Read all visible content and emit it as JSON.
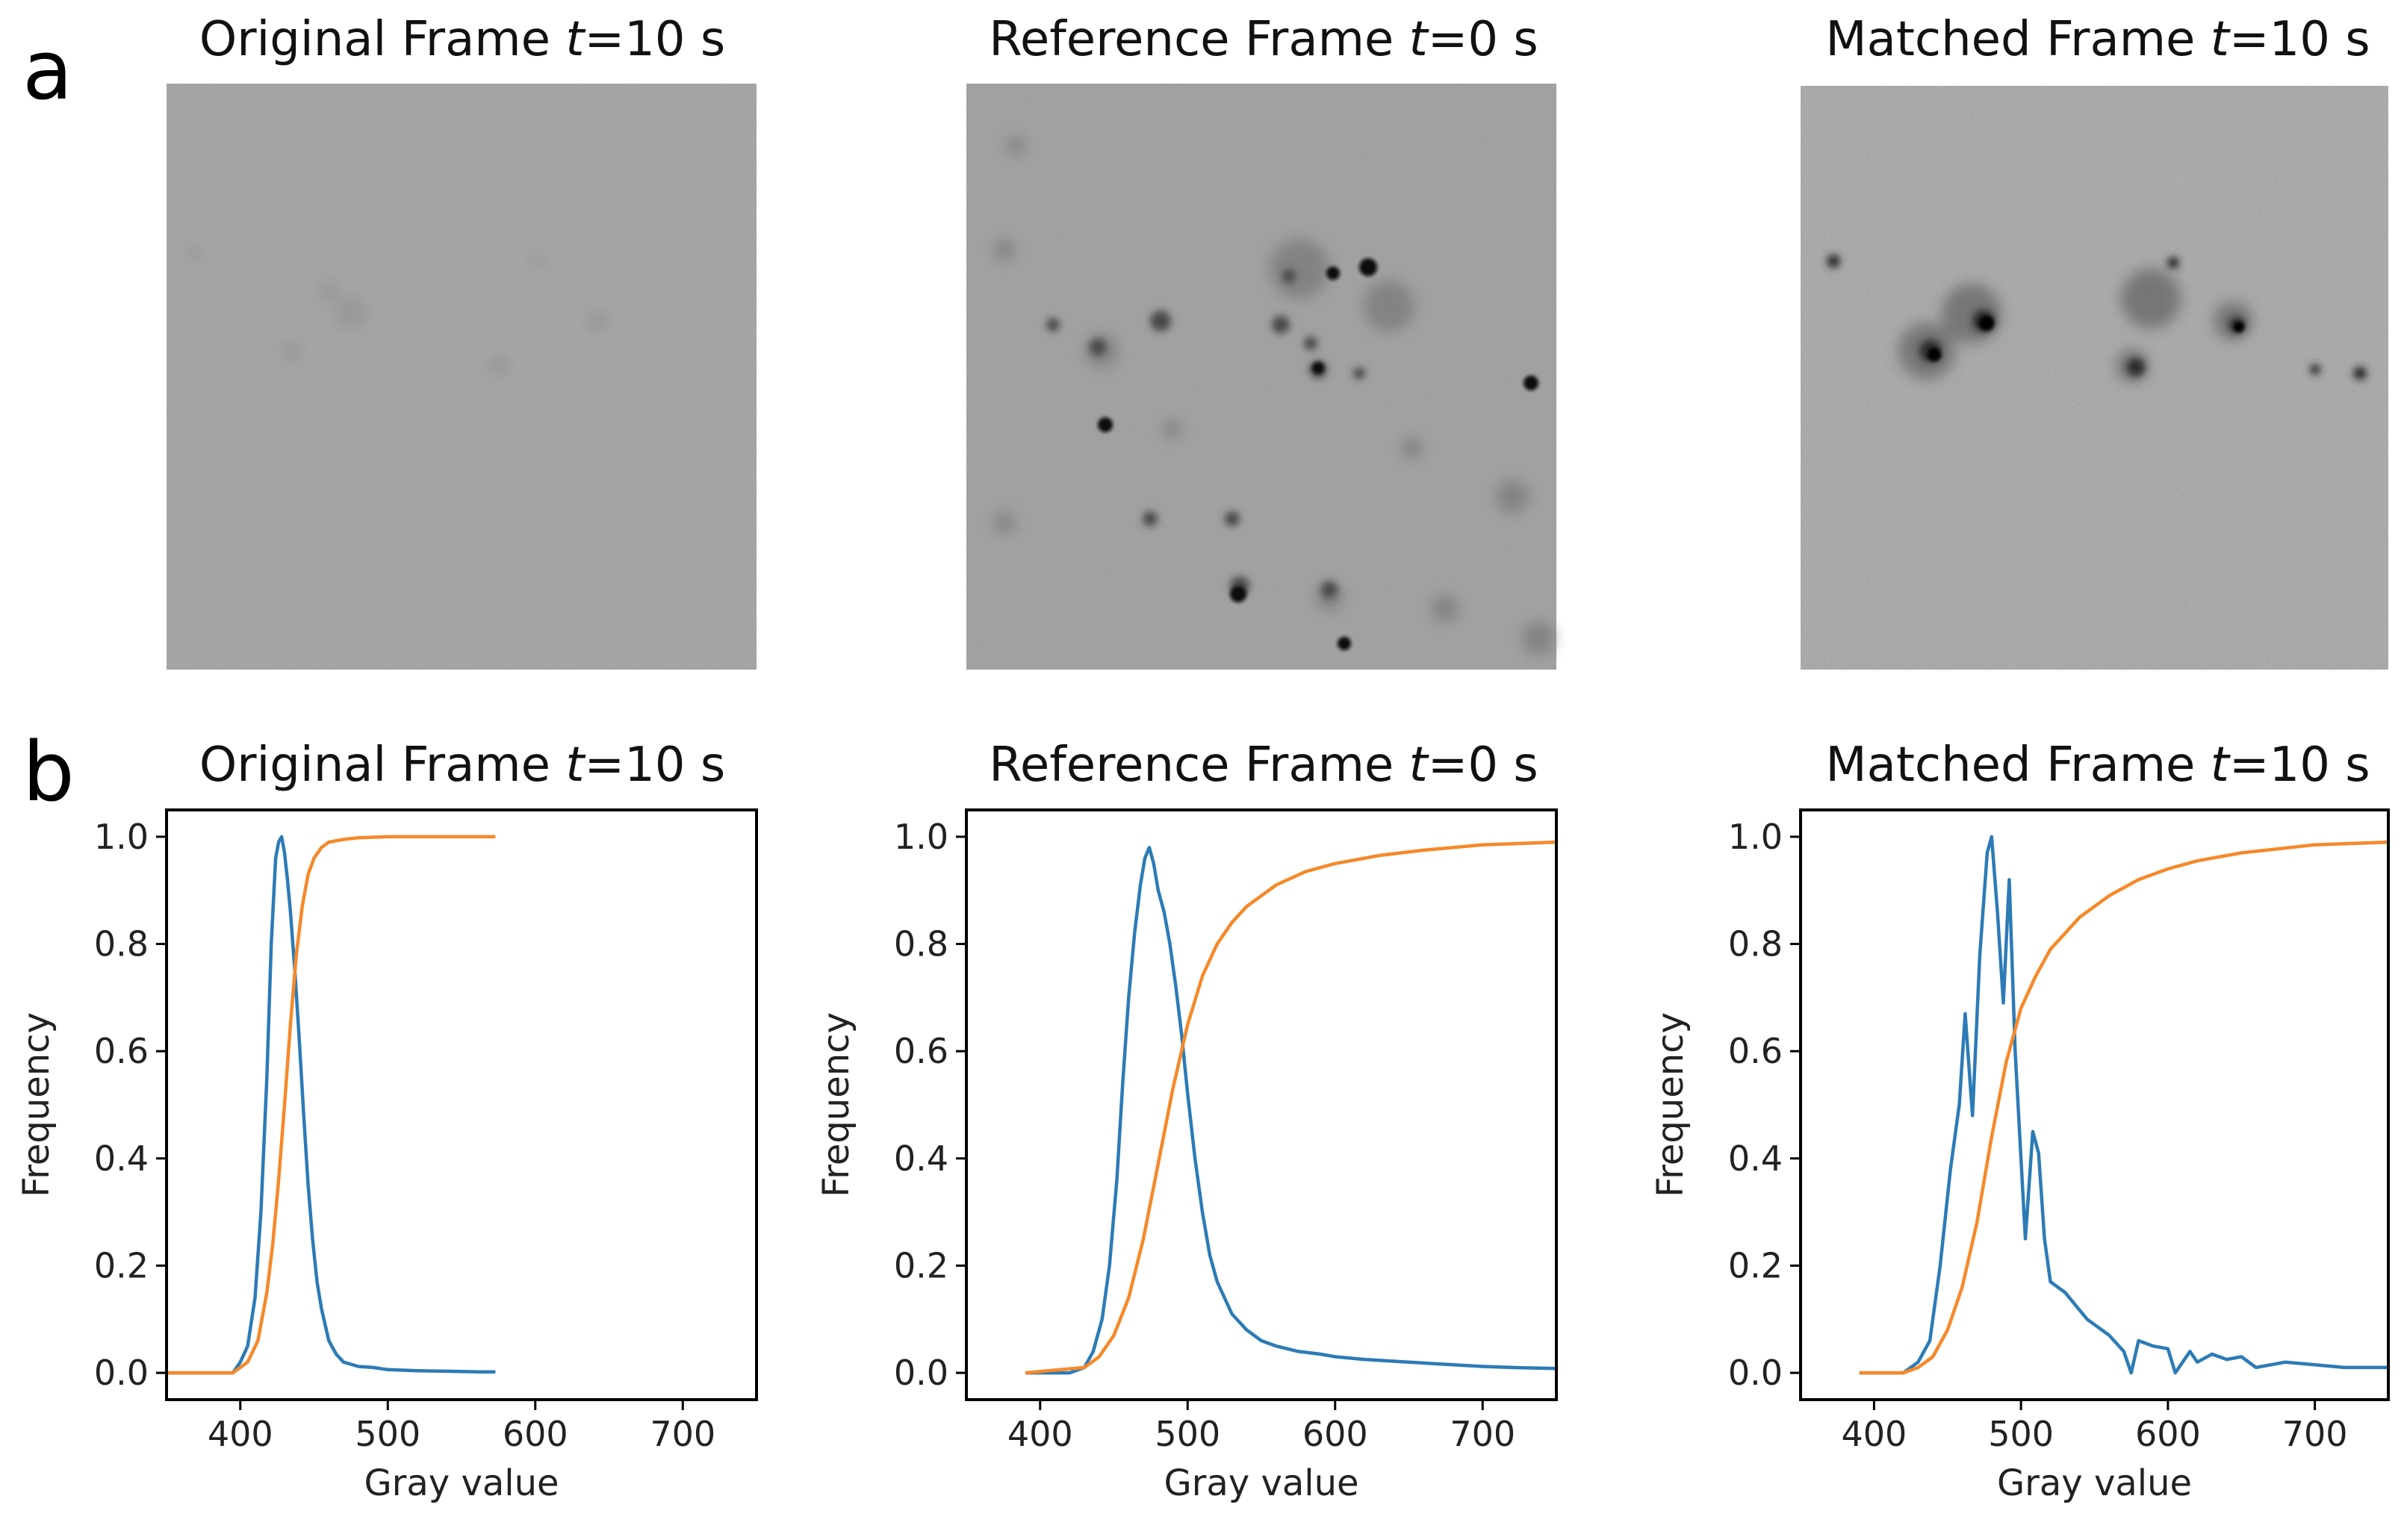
{
  "panel_labels": {
    "a": "a",
    "b": "b"
  },
  "images": [
    {
      "title_prefix": "Original Frame ",
      "title_var": "t",
      "title_suffix": "=10 s",
      "tone": "#a9a9a9",
      "contrast": "low"
    },
    {
      "title_prefix": "Reference Frame ",
      "title_var": "t",
      "title_suffix": "=0 s",
      "tone": "#a6a6a6",
      "contrast": "medium"
    },
    {
      "title_prefix": "Matched Frame ",
      "title_var": "t",
      "title_suffix": "=10 s",
      "tone": "#b4b4b4",
      "contrast": "high"
    }
  ],
  "colors": {
    "histogram": "#2c7bb6",
    "cdf": "#f5892a"
  },
  "chart_data": [
    {
      "type": "line",
      "title_prefix": "Original Frame ",
      "title_var": "t",
      "title_suffix": "=10 s",
      "xlabel": "Gray value",
      "ylabel": "Frequency",
      "xlim": [
        350,
        750
      ],
      "ylim": [
        -0.05,
        1.05
      ],
      "xticks": [
        400,
        500,
        600,
        700
      ],
      "yticks": [
        0.0,
        0.2,
        0.4,
        0.6,
        0.8,
        1.0
      ],
      "series": [
        {
          "role": "histogram",
          "x": [
            350,
            395,
            400,
            405,
            410,
            414,
            418,
            421,
            424,
            426,
            428,
            430,
            432,
            434,
            437,
            440,
            443,
            446,
            449,
            452,
            455,
            460,
            465,
            470,
            480,
            490,
            500,
            520,
            540,
            560,
            573
          ],
          "y": [
            0.0,
            0.0,
            0.02,
            0.05,
            0.14,
            0.3,
            0.55,
            0.8,
            0.96,
            0.99,
            1.0,
            0.97,
            0.92,
            0.86,
            0.75,
            0.62,
            0.48,
            0.35,
            0.25,
            0.17,
            0.12,
            0.06,
            0.035,
            0.02,
            0.012,
            0.01,
            0.006,
            0.004,
            0.003,
            0.002,
            0.002
          ]
        },
        {
          "role": "cdf",
          "x": [
            350,
            395,
            405,
            412,
            418,
            422,
            426,
            430,
            434,
            438,
            442,
            446,
            450,
            455,
            460,
            470,
            480,
            500,
            530,
            573
          ],
          "y": [
            0.0,
            0.0,
            0.02,
            0.06,
            0.15,
            0.24,
            0.36,
            0.5,
            0.65,
            0.78,
            0.87,
            0.93,
            0.96,
            0.98,
            0.99,
            0.995,
            0.998,
            1.0,
            1.0,
            1.0
          ]
        }
      ]
    },
    {
      "type": "line",
      "title_prefix": "Reference Frame ",
      "title_var": "t",
      "title_suffix": "=0 s",
      "xlabel": "Gray value",
      "ylabel": "Frequency",
      "xlim": [
        350,
        750
      ],
      "ylim": [
        -0.05,
        1.05
      ],
      "xticks": [
        400,
        500,
        600,
        700
      ],
      "yticks": [
        0.0,
        0.2,
        0.4,
        0.6,
        0.8,
        1.0
      ],
      "series": [
        {
          "role": "histogram",
          "x": [
            390,
            420,
            430,
            436,
            442,
            447,
            452,
            456,
            460,
            464,
            468,
            471,
            474,
            477,
            480,
            484,
            488,
            492,
            496,
            500,
            505,
            510,
            515,
            520,
            530,
            540,
            550,
            560,
            575,
            590,
            600,
            620,
            650,
            680,
            700,
            720,
            750
          ],
          "y": [
            0.0,
            0.0,
            0.01,
            0.04,
            0.1,
            0.2,
            0.36,
            0.54,
            0.7,
            0.82,
            0.91,
            0.96,
            0.98,
            0.95,
            0.9,
            0.86,
            0.8,
            0.72,
            0.63,
            0.52,
            0.4,
            0.3,
            0.22,
            0.17,
            0.11,
            0.08,
            0.06,
            0.05,
            0.04,
            0.035,
            0.03,
            0.025,
            0.02,
            0.015,
            0.012,
            0.01,
            0.008
          ]
        },
        {
          "role": "cdf",
          "x": [
            390,
            430,
            440,
            450,
            460,
            470,
            480,
            490,
            500,
            510,
            520,
            530,
            540,
            550,
            560,
            580,
            600,
            630,
            660,
            700,
            750
          ],
          "y": [
            0.0,
            0.01,
            0.03,
            0.07,
            0.14,
            0.25,
            0.39,
            0.53,
            0.65,
            0.74,
            0.8,
            0.84,
            0.87,
            0.89,
            0.91,
            0.935,
            0.95,
            0.965,
            0.975,
            0.985,
            0.99
          ]
        }
      ]
    },
    {
      "type": "line",
      "title_prefix": "Matched Frame ",
      "title_var": "t",
      "title_suffix": "=10 s",
      "xlabel": "Gray value",
      "ylabel": "Frequency",
      "xlim": [
        350,
        750
      ],
      "ylim": [
        -0.05,
        1.05
      ],
      "xticks": [
        400,
        500,
        600,
        700
      ],
      "yticks": [
        0.0,
        0.2,
        0.4,
        0.6,
        0.8,
        1.0
      ],
      "series": [
        {
          "role": "histogram",
          "x": [
            390,
            420,
            430,
            438,
            445,
            452,
            458,
            462,
            467,
            472,
            477,
            480,
            484,
            488,
            492,
            496,
            500,
            503,
            508,
            512,
            516,
            520,
            530,
            545,
            560,
            570,
            575,
            580,
            590,
            600,
            605,
            615,
            620,
            630,
            640,
            650,
            660,
            680,
            700,
            720,
            750
          ],
          "y": [
            0.0,
            0.0,
            0.02,
            0.06,
            0.2,
            0.38,
            0.5,
            0.67,
            0.48,
            0.78,
            0.97,
            1.0,
            0.86,
            0.69,
            0.92,
            0.6,
            0.4,
            0.25,
            0.45,
            0.41,
            0.25,
            0.17,
            0.15,
            0.1,
            0.07,
            0.04,
            0.0,
            0.06,
            0.05,
            0.045,
            0.0,
            0.04,
            0.02,
            0.035,
            0.025,
            0.03,
            0.01,
            0.02,
            0.015,
            0.01,
            0.01
          ]
        },
        {
          "role": "cdf",
          "x": [
            390,
            420,
            430,
            440,
            450,
            460,
            470,
            480,
            490,
            500,
            510,
            520,
            530,
            540,
            550,
            560,
            580,
            600,
            620,
            650,
            700,
            750
          ],
          "y": [
            0.0,
            0.0,
            0.01,
            0.03,
            0.08,
            0.16,
            0.28,
            0.44,
            0.58,
            0.68,
            0.74,
            0.79,
            0.82,
            0.85,
            0.87,
            0.89,
            0.92,
            0.94,
            0.955,
            0.97,
            0.985,
            0.99
          ]
        }
      ]
    }
  ]
}
